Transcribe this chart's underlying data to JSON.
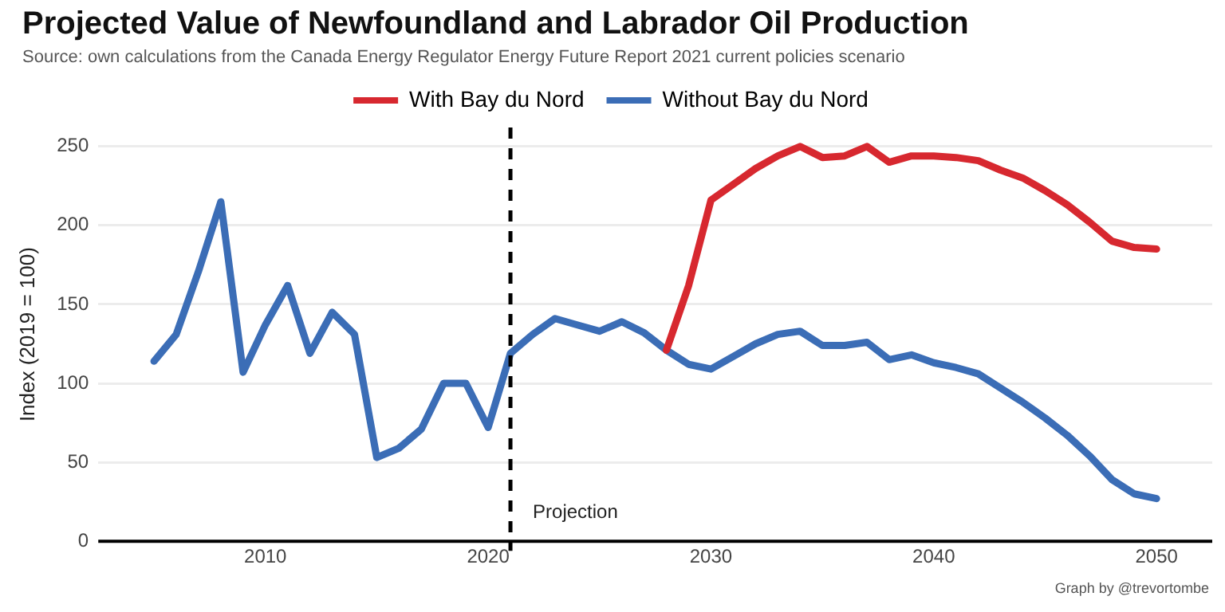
{
  "chart_data": {
    "type": "line",
    "title": "Projected Value of Newfoundland and Labrador Oil Production",
    "subtitle": "Source: own calculations from the Canada Energy Regulator Energy Future Report 2021 current policies scenario",
    "ylabel": "Index (2019 = 100)",
    "annotations": [
      "Graph by @trevortombe"
    ],
    "x": [
      2005,
      2006,
      2007,
      2008,
      2009,
      2010,
      2011,
      2012,
      2013,
      2014,
      2015,
      2016,
      2017,
      2018,
      2019,
      2020,
      2021,
      2022,
      2023,
      2024,
      2025,
      2026,
      2027,
      2028,
      2029,
      2030,
      2031,
      2032,
      2033,
      2034,
      2035,
      2036,
      2037,
      2038,
      2039,
      2040,
      2041,
      2042,
      2043,
      2044,
      2045,
      2046,
      2047,
      2048,
      2049,
      2050
    ],
    "series": [
      {
        "name": "With Bay du Nord",
        "color": "#d7282f",
        "values": [
          null,
          null,
          null,
          null,
          null,
          null,
          null,
          null,
          null,
          null,
          null,
          null,
          null,
          null,
          null,
          null,
          null,
          null,
          null,
          null,
          null,
          null,
          null,
          121,
          162,
          216,
          226,
          236,
          244,
          250,
          243,
          244,
          250,
          240,
          244,
          244,
          243,
          241,
          235,
          230,
          222,
          213,
          202,
          190,
          186,
          185
        ]
      },
      {
        "name": "Without Bay du Nord",
        "color": "#3b6db6",
        "values": [
          114,
          131,
          171,
          215,
          107,
          137,
          162,
          119,
          145,
          131,
          53,
          59,
          71,
          100,
          100,
          72,
          119,
          131,
          141,
          137,
          133,
          139,
          132,
          121,
          112,
          109,
          117,
          125,
          131,
          133,
          124,
          124,
          126,
          115,
          118,
          113,
          110,
          106,
          97,
          88,
          78,
          67,
          54,
          39,
          30,
          27
        ]
      }
    ],
    "xlim": [
      2002.5,
      2052.5
    ],
    "xticks": [
      2010,
      2020,
      2030,
      2040,
      2050
    ],
    "ylim": [
      0,
      262
    ],
    "yticks": [
      0,
      50,
      100,
      150,
      200,
      250
    ],
    "grid": "y",
    "legend": "top",
    "marker": "none",
    "line_style": "solid",
    "ref_lines": [
      {
        "axis": "x",
        "value": 2021,
        "label": "Projection",
        "color": "#000000",
        "line_style": "dashed"
      }
    ]
  }
}
